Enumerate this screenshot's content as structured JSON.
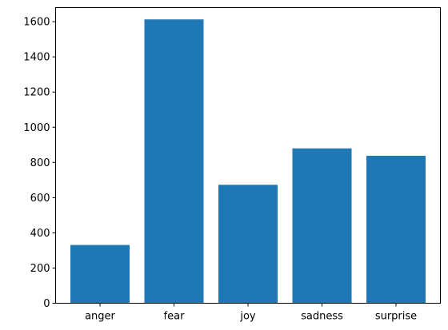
{
  "chart_data": {
    "type": "bar",
    "categories": [
      "anger",
      "fear",
      "joy",
      "sadness",
      "surprise"
    ],
    "values": [
      331,
      1613,
      673,
      880,
      838
    ],
    "ylim": [
      0,
      1680
    ],
    "yticks": [
      0,
      200,
      400,
      600,
      800,
      1000,
      1200,
      1400,
      1600
    ],
    "grid": false,
    "bar_color": "#1f77b4",
    "title": "",
    "xlabel": "",
    "ylabel": ""
  }
}
